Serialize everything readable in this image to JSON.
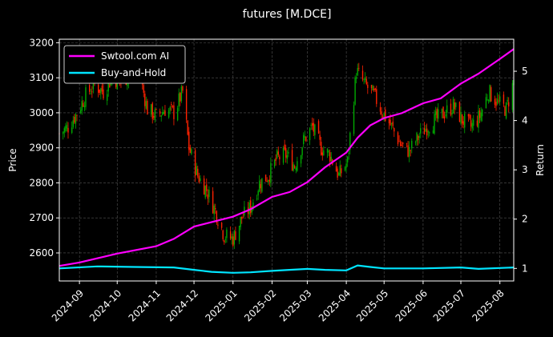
{
  "chart_data": {
    "type": "line",
    "title": "futures [M.DCE]",
    "xlabel": "",
    "ylabel": "Price",
    "y2label": "Return",
    "xlim": [
      "2024-08-16",
      "2025-08-12"
    ],
    "ylim": [
      2520,
      3210
    ],
    "y2lim": [
      0.745,
      5.65
    ],
    "grid": true,
    "legend_position": "top-left",
    "colors": {
      "up": "#00aa00",
      "down": "#ff2200",
      "ai": "#ff00ff",
      "bh": "#00e5ff",
      "grid": "#555555"
    },
    "x_ticks": [
      "2024-09",
      "2024-10",
      "2024-11",
      "2024-12",
      "2025-01",
      "2025-02",
      "2025-03",
      "2025-04",
      "2025-05",
      "2025-06",
      "2025-07",
      "2025-08"
    ],
    "y_ticks": [
      2600,
      2700,
      2800,
      2900,
      3000,
      3100,
      3200
    ],
    "y2_ticks": [
      1,
      2,
      3,
      4,
      5
    ],
    "price_close": [
      [
        "2024-08-16",
        2940
      ],
      [
        "2024-08-23",
        2960
      ],
      [
        "2024-08-30",
        3000
      ],
      [
        "2024-09-06",
        3050
      ],
      [
        "2024-09-13",
        3080
      ],
      [
        "2024-09-20",
        3060
      ],
      [
        "2024-09-27",
        3100
      ],
      [
        "2024-10-04",
        3090
      ],
      [
        "2024-10-11",
        3110
      ],
      [
        "2024-10-18",
        3120
      ],
      [
        "2024-10-25",
        3010
      ],
      [
        "2024-11-01",
        2990
      ],
      [
        "2024-11-08",
        3010
      ],
      [
        "2024-11-15",
        3000
      ],
      [
        "2024-11-22",
        3060
      ],
      [
        "2024-11-27",
        2900
      ],
      [
        "2024-12-04",
        2820
      ],
      [
        "2024-12-11",
        2780
      ],
      [
        "2024-12-18",
        2720
      ],
      [
        "2024-12-25",
        2650
      ],
      [
        "2025-01-01",
        2640
      ],
      [
        "2025-01-08",
        2700
      ],
      [
        "2025-01-15",
        2730
      ],
      [
        "2025-01-22",
        2800
      ],
      [
        "2025-01-29",
        2820
      ],
      [
        "2025-02-05",
        2870
      ],
      [
        "2025-02-12",
        2880
      ],
      [
        "2025-02-19",
        2850
      ],
      [
        "2025-02-26",
        2920
      ],
      [
        "2025-03-05",
        2960
      ],
      [
        "2025-03-12",
        2900
      ],
      [
        "2025-03-19",
        2880
      ],
      [
        "2025-03-26",
        2820
      ],
      [
        "2025-04-02",
        2860
      ],
      [
        "2025-04-09",
        3120
      ],
      [
        "2025-04-16",
        3080
      ],
      [
        "2025-04-23",
        3050
      ],
      [
        "2025-04-30",
        3000
      ],
      [
        "2025-05-07",
        2960
      ],
      [
        "2025-05-14",
        2910
      ],
      [
        "2025-05-21",
        2890
      ],
      [
        "2025-05-28",
        2930
      ],
      [
        "2025-06-04",
        2960
      ],
      [
        "2025-06-11",
        2980
      ],
      [
        "2025-06-18",
        3000
      ],
      [
        "2025-06-25",
        3020
      ],
      [
        "2025-07-02",
        2980
      ],
      [
        "2025-07-09",
        2960
      ],
      [
        "2025-07-16",
        2990
      ],
      [
        "2025-07-23",
        3060
      ],
      [
        "2025-07-30",
        3030
      ],
      [
        "2025-08-06",
        3010
      ],
      [
        "2025-08-12",
        3090
      ]
    ],
    "series": [
      {
        "name": "Swtool.com AI",
        "points": [
          [
            "2024-08-16",
            1.05
          ],
          [
            "2024-09-01",
            1.12
          ],
          [
            "2024-10-01",
            1.3
          ],
          [
            "2024-11-01",
            1.45
          ],
          [
            "2024-11-15",
            1.6
          ],
          [
            "2024-12-01",
            1.85
          ],
          [
            "2025-01-01",
            2.05
          ],
          [
            "2025-01-15",
            2.2
          ],
          [
            "2025-02-01",
            2.45
          ],
          [
            "2025-02-15",
            2.55
          ],
          [
            "2025-03-01",
            2.75
          ],
          [
            "2025-03-15",
            3.05
          ],
          [
            "2025-04-01",
            3.35
          ],
          [
            "2025-04-10",
            3.65
          ],
          [
            "2025-04-20",
            3.9
          ],
          [
            "2025-05-01",
            4.05
          ],
          [
            "2025-05-15",
            4.15
          ],
          [
            "2025-06-01",
            4.35
          ],
          [
            "2025-06-15",
            4.45
          ],
          [
            "2025-07-01",
            4.75
          ],
          [
            "2025-07-15",
            4.95
          ],
          [
            "2025-08-01",
            5.25
          ],
          [
            "2025-08-12",
            5.45
          ]
        ]
      },
      {
        "name": "Buy-and-Hold",
        "points": [
          [
            "2024-08-16",
            1.0
          ],
          [
            "2024-09-15",
            1.04
          ],
          [
            "2024-10-15",
            1.03
          ],
          [
            "2024-11-15",
            1.02
          ],
          [
            "2024-12-01",
            0.97
          ],
          [
            "2024-12-15",
            0.93
          ],
          [
            "2025-01-01",
            0.91
          ],
          [
            "2025-01-15",
            0.92
          ],
          [
            "2025-02-01",
            0.95
          ],
          [
            "2025-02-15",
            0.97
          ],
          [
            "2025-03-01",
            0.99
          ],
          [
            "2025-03-15",
            0.97
          ],
          [
            "2025-04-01",
            0.96
          ],
          [
            "2025-04-10",
            1.06
          ],
          [
            "2025-04-20",
            1.03
          ],
          [
            "2025-05-01",
            1.0
          ],
          [
            "2025-06-01",
            1.0
          ],
          [
            "2025-07-01",
            1.02
          ],
          [
            "2025-07-15",
            0.99
          ],
          [
            "2025-08-12",
            1.02
          ]
        ]
      }
    ]
  }
}
